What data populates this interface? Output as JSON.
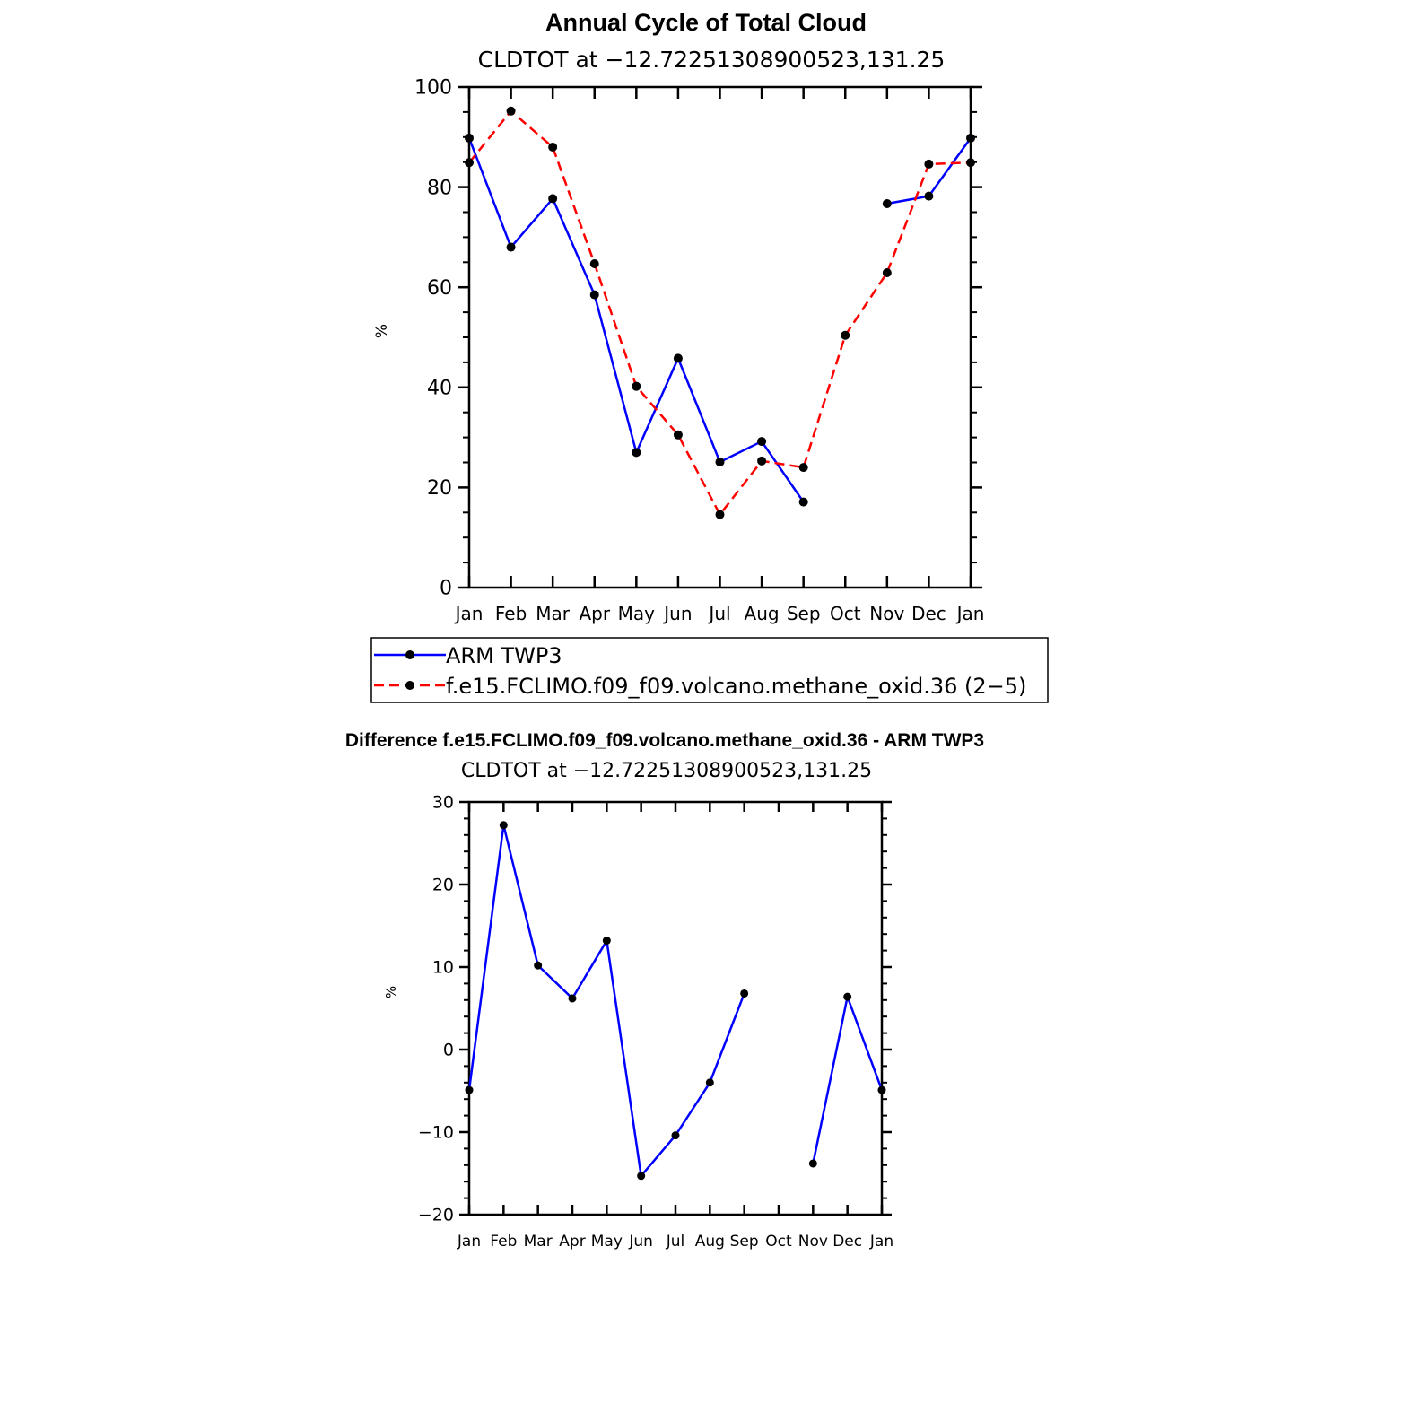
{
  "chart_data": [
    {
      "type": "line",
      "title": "Annual Cycle of Total Cloud",
      "subtitle": "CLDTOT at −12.72251308900523,131.25",
      "xlabel": "",
      "ylabel": "%",
      "ylim": [
        0,
        100
      ],
      "yticks": [
        0,
        20,
        40,
        60,
        80,
        100
      ],
      "yticks_labels": [
        "0",
        "20",
        "40",
        "60",
        "80",
        "100"
      ],
      "categories": [
        "Jan",
        "Feb",
        "Mar",
        "Apr",
        "May",
        "Jun",
        "Jul",
        "Aug",
        "Sep",
        "Oct",
        "Nov",
        "Dec",
        "Jan"
      ],
      "grid": false,
      "legend_position": "below",
      "series": [
        {
          "name": "ARM TWP3",
          "color": "#0000ff",
          "dash": "solid",
          "values": [
            89.8,
            68.0,
            77.7,
            58.5,
            27.0,
            45.8,
            25.1,
            29.2,
            17.1,
            null,
            76.7,
            78.2,
            89.8
          ]
        },
        {
          "name": "f.e15.FCLIMO.f09_f09.volcano.methane_oxid.36 (2−5)",
          "color": "#ff0000",
          "dash": "dashed",
          "values": [
            84.9,
            95.2,
            88.0,
            64.7,
            40.2,
            30.5,
            14.6,
            25.3,
            24.0,
            50.4,
            62.9,
            84.6,
            84.9
          ]
        }
      ]
    },
    {
      "type": "line",
      "title": "Difference f.e15.FCLIMO.f09_f09.volcano.methane_oxid.36 - ARM TWP3",
      "subtitle": "CLDTOT at −12.72251308900523,131.25",
      "xlabel": "",
      "ylabel": "%",
      "ylim": [
        -20,
        30
      ],
      "yticks": [
        -20,
        -10,
        0,
        10,
        20,
        30
      ],
      "yticks_labels": [
        "−20",
        "−10",
        "0",
        "10",
        "20",
        "30"
      ],
      "categories": [
        "Jan",
        "Feb",
        "Mar",
        "Apr",
        "May",
        "Jun",
        "Jul",
        "Aug",
        "Sep",
        "Oct",
        "Nov",
        "Dec",
        "Jan"
      ],
      "grid": false,
      "series": [
        {
          "color": "#0000ff",
          "dash": "solid",
          "values": [
            -4.9,
            27.2,
            10.2,
            6.2,
            13.2,
            -15.3,
            -10.4,
            -4.0,
            6.8,
            null,
            -13.8,
            6.4,
            -4.9
          ]
        }
      ]
    }
  ]
}
